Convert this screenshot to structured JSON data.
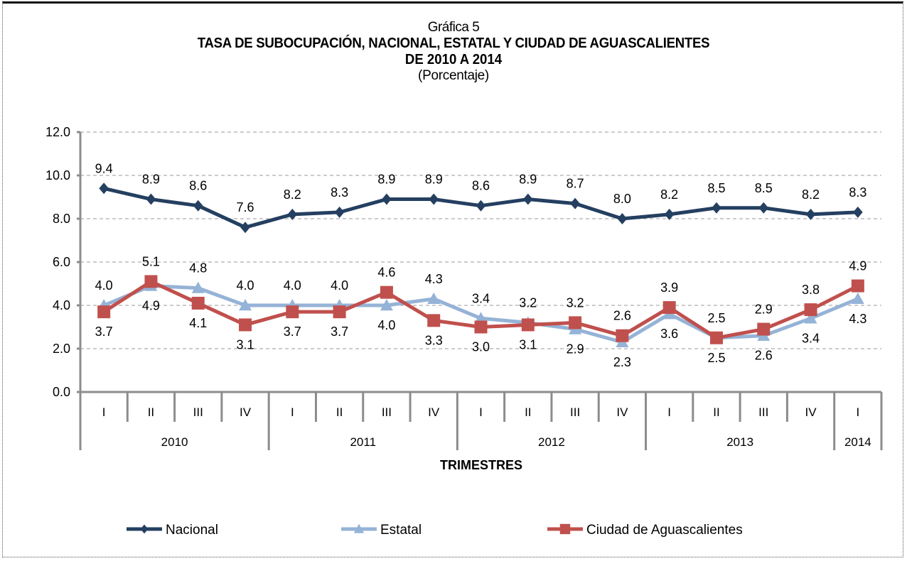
{
  "chart_data": {
    "type": "line",
    "title_line1": "Gráfica 5",
    "title_line2": "TASA DE SUBOCUPACIÓN,  NACIONAL,  ESTATAL Y CIUDAD DE AGUASCALIENTES",
    "title_line3": "DE 2010  A 2014",
    "subtitle": "(Porcentaje)",
    "xlabel": "TRIMESTRES",
    "ylabel": "",
    "ylim": [
      0,
      12
    ],
    "yticks": [
      "0.0",
      "2.0",
      "4.0",
      "6.0",
      "8.0",
      "10.0",
      "12.0"
    ],
    "grid": true,
    "legend_position": "bottom",
    "categories": [
      "I",
      "II",
      "III",
      "IV",
      "I",
      "II",
      "III",
      "IV",
      "I",
      "II",
      "III",
      "IV",
      "I",
      "II",
      "III",
      "IV",
      "I"
    ],
    "years": [
      {
        "label": "2010",
        "quarters": 4
      },
      {
        "label": "2011",
        "quarters": 4
      },
      {
        "label": "2012",
        "quarters": 4
      },
      {
        "label": "2013",
        "quarters": 4
      },
      {
        "label": "2014",
        "quarters": 1
      }
    ],
    "series": [
      {
        "name": "Nacional",
        "color": "#243F60",
        "marker": "diamond",
        "values": [
          9.4,
          8.9,
          8.6,
          7.6,
          8.2,
          8.3,
          8.9,
          8.9,
          8.6,
          8.9,
          8.7,
          8.0,
          8.2,
          8.5,
          8.5,
          8.2,
          8.3
        ],
        "label_positions": [
          "above",
          "above",
          "above",
          "above",
          "above",
          "above",
          "above",
          "above",
          "above",
          "above",
          "above",
          "above",
          "above",
          "above",
          "above",
          "above",
          "above"
        ]
      },
      {
        "name": "Estatal",
        "color": "#95B3D7",
        "marker": "triangle",
        "values": [
          4.0,
          4.9,
          4.8,
          4.0,
          4.0,
          4.0,
          4.0,
          4.3,
          3.4,
          3.2,
          2.9,
          2.3,
          3.6,
          2.5,
          2.6,
          3.4,
          4.3
        ],
        "label_positions": [
          "above",
          "below",
          "above",
          "above",
          "above",
          "above",
          "below",
          "above",
          "above",
          "above",
          "below",
          "below",
          "below",
          "below",
          "below",
          "below",
          "below"
        ]
      },
      {
        "name": "Ciudad de Aguascalientes",
        "color": "#C0504D",
        "marker": "square",
        "values": [
          3.7,
          5.1,
          4.1,
          3.1,
          3.7,
          3.7,
          4.6,
          3.3,
          3.0,
          3.1,
          3.2,
          2.6,
          3.9,
          2.5,
          2.9,
          3.8,
          4.9
        ],
        "label_positions": [
          "below",
          "above",
          "below",
          "below",
          "below",
          "below",
          "above",
          "below",
          "below",
          "below",
          "above",
          "above",
          "above",
          "above",
          "above",
          "above",
          "above"
        ]
      }
    ]
  }
}
